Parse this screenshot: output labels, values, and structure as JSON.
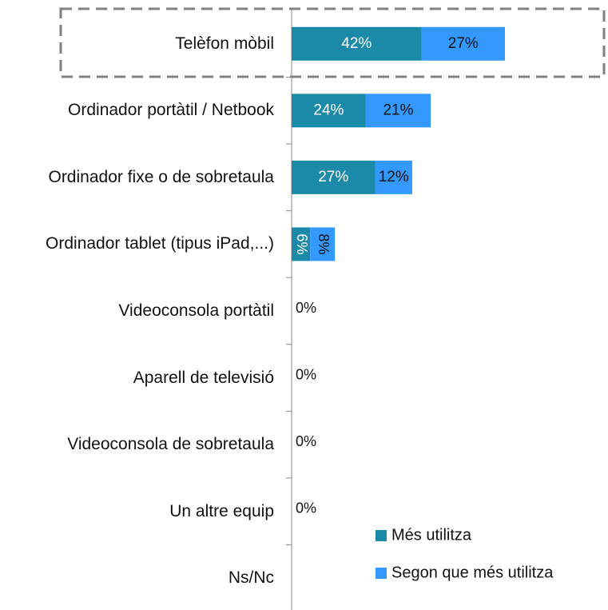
{
  "chart_data": {
    "type": "stacked-barh",
    "categories": [
      "Telèfon mòbil",
      "Ordinador portàtil / Netbook",
      "Ordinador fixe o de sobretaula",
      "Ordinador tablet (tipus iPad,...)",
      "Videoconsola portàtil",
      "Aparell de televisió",
      "Videoconsola de sobretaula",
      "Un altre equip",
      "Ns/Nc"
    ],
    "series": [
      {
        "name": "Més utilitza",
        "color": "#1a8aa8",
        "values": [
          42,
          24,
          27,
          6,
          0,
          0,
          0,
          0,
          null
        ],
        "value_labels": [
          "42%",
          "24%",
          "27%",
          "6%",
          "0%",
          "0%",
          "0%",
          "0%",
          null
        ]
      },
      {
        "name": "Segon que més utilitza",
        "color": "#3399ff",
        "values": [
          27,
          21,
          12,
          8,
          null,
          null,
          null,
          null,
          null
        ],
        "value_labels": [
          "27%",
          "21%",
          "12%",
          "8%",
          null,
          null,
          null,
          null,
          null
        ]
      }
    ],
    "xlim": [
      0,
      100
    ],
    "legend": "lower right"
  }
}
